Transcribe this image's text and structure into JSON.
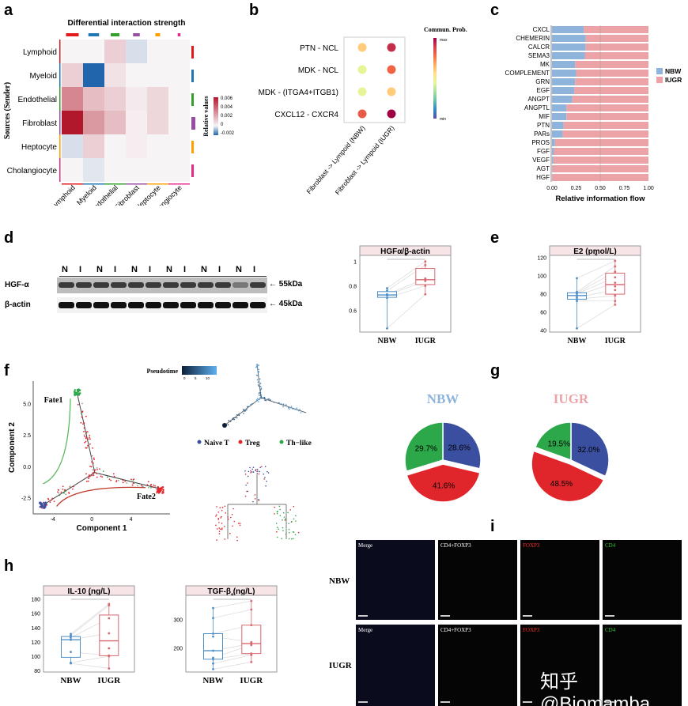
{
  "panels": {
    "a": "a",
    "b": "b",
    "c": "c",
    "d": "d",
    "e": "e",
    "f": "f",
    "g": "g",
    "h": "h",
    "i": "i"
  },
  "chart_data": [
    {
      "id": "a",
      "type": "heatmap",
      "title": "Differential interaction strength",
      "ylabel": "Sources (Sender)",
      "rows": [
        "Lymphoid",
        "Myeloid",
        "Endothelial",
        "Fibroblast",
        "Heptocyte",
        "Cholangiocyte"
      ],
      "cols": [
        "Lymphoid",
        "Myeloid",
        "Endothelial",
        "Fibroblast",
        "Heptocyte",
        "Cholangiocyte"
      ],
      "values": [
        [
          0,
          0,
          0.001,
          -0.0003,
          0,
          0
        ],
        [
          0.001,
          -0.002,
          0.0005,
          0,
          0,
          0
        ],
        [
          0.003,
          0.0015,
          0.001,
          0.0003,
          0.0008,
          0
        ],
        [
          0.006,
          0.0025,
          0.0015,
          0.0002,
          0.0008,
          0
        ],
        [
          -0.0003,
          0.001,
          0,
          0.0002,
          0,
          0
        ],
        [
          0,
          -0.0002,
          0,
          0,
          0,
          0
        ]
      ],
      "group_colors": [
        "#e31a1c",
        "#1f78b4",
        "#33a02c",
        "#984ea3",
        "#ff9f00",
        "#e7298a"
      ],
      "legend_title": "Relative values",
      "legend_ticks": [
        "0.006",
        "0.004",
        "0.002",
        "0",
        "-0.002"
      ],
      "range": [
        -0.002,
        0.006
      ]
    },
    {
      "id": "b",
      "type": "scatter",
      "rows": [
        "PTN - NCL",
        "MDK - NCL",
        "MDK - (ITGA4+ITGB1)",
        "CXCL12 - CXCR4"
      ],
      "cols": [
        "Fibroblast -> Lympoid (NBW)",
        "Fibroblast -> Lympoid (IUGR)"
      ],
      "values": [
        [
          0.6,
          0.92
        ],
        [
          0.45,
          0.8
        ],
        [
          0.45,
          0.6
        ],
        [
          0.82,
          1.0
        ]
      ],
      "legend_title": "Commun. Prob.",
      "legend_max": "max",
      "legend_min": "min"
    },
    {
      "id": "c",
      "type": "bar",
      "stacked": true,
      "orientation": "horizontal",
      "xlabel": "Relative information flow",
      "categories": [
        "CXCL",
        "CHEMERIN",
        "CALCR",
        "SEMA3",
        "MK",
        "COMPLEMENT",
        "GRN",
        "EGF",
        "ANGPT",
        "ANGPTL",
        "MIF",
        "PTN",
        "PARs",
        "PROS",
        "FGF",
        "VEGF",
        "AGT",
        "HGF"
      ],
      "series": [
        {
          "name": "NBW",
          "color": "#8fb4dc",
          "values": [
            0.33,
            0.35,
            0.35,
            0.34,
            0.24,
            0.25,
            0.24,
            0.23,
            0.21,
            0.15,
            0.15,
            0.12,
            0.11,
            0.03,
            0.02,
            0.015,
            0.005,
            0.003
          ]
        },
        {
          "name": "IUGR",
          "color": "#eba3a8",
          "values": [
            0.67,
            0.65,
            0.65,
            0.66,
            0.76,
            0.75,
            0.76,
            0.77,
            0.79,
            0.85,
            0.85,
            0.88,
            0.89,
            0.97,
            0.98,
            0.985,
            0.995,
            0.997
          ]
        }
      ],
      "xticks": [
        "0.00",
        "0.25",
        "0.50",
        "0.75",
        "1.00"
      ],
      "xlim": [
        0,
        1
      ],
      "legend": "right"
    },
    {
      "id": "d",
      "type": "box",
      "title": "HGFα/β-actin",
      "categories": [
        "NBW",
        "IUGR"
      ],
      "ylim": [
        0.42,
        1.05
      ],
      "yticks": [
        0.6,
        0.8,
        1.0
      ],
      "points": [
        [
          0.45,
          0.7,
          0.72,
          0.73,
          0.76,
          0.78
        ],
        [
          0.73,
          0.8,
          0.84,
          0.86,
          0.97,
          1.0
        ]
      ],
      "significance": "*"
    },
    {
      "id": "e",
      "type": "box",
      "title": "E2 (pmol/L)",
      "categories": [
        "NBW",
        "IUGR"
      ],
      "ylim": [
        38,
        122
      ],
      "yticks": [
        40,
        60,
        80,
        100,
        120
      ],
      "points": [
        [
          42,
          72,
          74,
          76,
          78,
          80,
          81,
          82,
          97
        ],
        [
          68,
          72,
          78,
          84,
          88,
          92,
          98,
          104,
          110,
          116
        ]
      ],
      "significance": "*"
    },
    {
      "id": "f",
      "type": "scatter",
      "xlabel": "Component 1",
      "ylabel": "Component 2",
      "xticks": [
        "-4",
        "0",
        "4"
      ],
      "yticks": [
        "-2.5",
        "0.0",
        "2.5",
        "5.0"
      ],
      "xlim": [
        -6,
        8
      ],
      "ylim": [
        -3.8,
        6.8
      ],
      "annotations": [
        "Fate1",
        "Fate2"
      ],
      "pseudotime_title": "Pseudotime",
      "pseudotime_ticks": [
        "0",
        "5",
        "10"
      ],
      "legend": [
        {
          "name": "Naive T",
          "color": "#3a4fa0"
        },
        {
          "name": "Treg",
          "color": "#e0262b"
        },
        {
          "name": "Th−like",
          "color": "#2ca84a"
        }
      ]
    },
    {
      "id": "g",
      "type": "pie",
      "pies": [
        {
          "name": "NBW",
          "title_color": "#8fb4dc",
          "slices": [
            {
              "label": "28.6%",
              "value": 28.6,
              "color": "#3a4fa0"
            },
            {
              "label": "41.6%",
              "value": 41.6,
              "color": "#e0262b"
            },
            {
              "label": "29.7%",
              "value": 29.7,
              "color": "#2ca84a"
            }
          ]
        },
        {
          "name": "IUGR",
          "title_color": "#eba3a8",
          "slices": [
            {
              "label": "32.0%",
              "value": 32.0,
              "color": "#3a4fa0"
            },
            {
              "label": "48.5%",
              "value": 48.5,
              "color": "#e0262b"
            },
            {
              "label": "19.5%",
              "value": 19.5,
              "color": "#2ca84a"
            }
          ]
        }
      ]
    },
    {
      "id": "h1",
      "type": "box",
      "title": "IL-10 (ng/L)",
      "categories": [
        "NBW",
        "IUGR"
      ],
      "ylim": [
        78,
        185
      ],
      "yticks": [
        80,
        100,
        120,
        140,
        160,
        180
      ],
      "points": [
        [
          90,
          91,
          106,
          123,
          126,
          129,
          131
        ],
        [
          83,
          100,
          101,
          111,
          132,
          153,
          171,
          173
        ]
      ],
      "significance": "*"
    },
    {
      "id": "h2",
      "type": "box",
      "title": "TGF-β (ng/L)",
      "categories": [
        "NBW",
        "IUGR"
      ],
      "ylim": [
        115,
        385
      ],
      "yticks": [
        200,
        300
      ],
      "points": [
        [
          125,
          145,
          160,
          165,
          190,
          240,
          250,
          305,
          340
        ],
        [
          150,
          175,
          180,
          210,
          215,
          220,
          280,
          335,
          365
        ]
      ],
      "significance": "*"
    }
  ],
  "blot": {
    "lanes": [
      "N",
      "I",
      "N",
      "I",
      "N",
      "I",
      "N",
      "I",
      "N",
      "I",
      "N",
      "I"
    ],
    "rows": [
      {
        "label": "HGF-α",
        "size": "← 55kDa"
      },
      {
        "label": "β-actin",
        "size": "← 45kDa"
      }
    ]
  },
  "micro": {
    "rows": [
      "NBW",
      "IUGR"
    ],
    "cols": [
      {
        "label": "Merge",
        "color": "#ffffff"
      },
      {
        "label": "CD4+FOXP3",
        "color": "#ffffff"
      },
      {
        "label": "FOXP3",
        "color": "#ff3030"
      },
      {
        "label": "CD4",
        "color": "#30c030"
      }
    ]
  },
  "watermark": "知乎 @Biomamba"
}
